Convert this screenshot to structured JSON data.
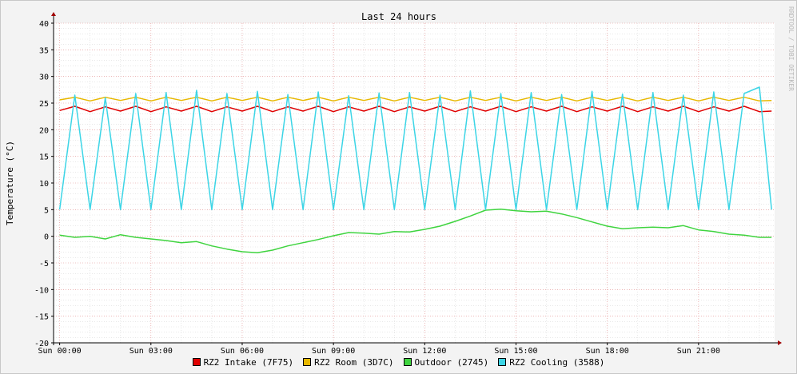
{
  "chart_data": {
    "type": "line",
    "title": "Last 24 hours",
    "ylabel": "Temperature (°C)",
    "xlabel": "",
    "watermark": "RRDTOOL / TOBI OETIKER",
    "ylim": [
      -20,
      40
    ],
    "yticks": [
      40,
      35,
      30,
      25,
      20,
      15,
      10,
      5,
      0,
      -5,
      -10,
      -15,
      -20
    ],
    "yticklabels": [
      "40",
      "35",
      "30",
      "25",
      "20",
      "15",
      "10",
      "5",
      "0",
      "-5",
      "-10",
      "-15",
      "-20"
    ],
    "xlim": [
      -0.2,
      23.5
    ],
    "xticks": [
      0,
      3,
      6,
      9,
      12,
      15,
      18,
      21
    ],
    "xticklabels": [
      "Sun 00:00",
      "Sun 03:00",
      "Sun 06:00",
      "Sun 09:00",
      "Sun 12:00",
      "Sun 15:00",
      "Sun 18:00",
      "Sun 21:00"
    ],
    "grid": true,
    "legend_position": "bottom",
    "series": [
      {
        "name": "RZ2 Intake (7F75)",
        "color": "#e00000",
        "x": [
          0,
          0.5,
          1,
          1.5,
          2,
          2.5,
          3,
          3.5,
          4,
          4.5,
          5,
          5.5,
          6,
          6.5,
          7,
          7.5,
          8,
          8.5,
          9,
          9.5,
          10,
          10.5,
          11,
          11.5,
          12,
          12.5,
          13,
          13.5,
          14,
          14.5,
          15,
          15.5,
          16,
          16.5,
          17,
          17.5,
          18,
          18.5,
          19,
          19.5,
          20,
          20.5,
          21,
          21.5,
          22,
          22.5,
          23,
          23.4
        ],
        "values": [
          23.6,
          24.4,
          23.4,
          24.3,
          23.5,
          24.4,
          23.4,
          24.3,
          23.5,
          24.4,
          23.4,
          24.3,
          23.5,
          24.4,
          23.4,
          24.3,
          23.5,
          24.4,
          23.4,
          24.3,
          23.5,
          24.4,
          23.4,
          24.3,
          23.5,
          24.4,
          23.4,
          24.3,
          23.5,
          24.4,
          23.4,
          24.3,
          23.5,
          24.4,
          23.4,
          24.3,
          23.5,
          24.4,
          23.4,
          24.3,
          23.5,
          24.4,
          23.4,
          24.3,
          23.5,
          24.4,
          23.4,
          23.5
        ]
      },
      {
        "name": "RZ2 Room (3D7C)",
        "color": "#e8b800",
        "x": [
          0,
          0.5,
          1,
          1.5,
          2,
          2.5,
          3,
          3.5,
          4,
          4.5,
          5,
          5.5,
          6,
          6.5,
          7,
          7.5,
          8,
          8.5,
          9,
          9.5,
          10,
          10.5,
          11,
          11.5,
          12,
          12.5,
          13,
          13.5,
          14,
          14.5,
          15,
          15.5,
          16,
          16.5,
          17,
          17.5,
          18,
          18.5,
          19,
          19.5,
          20,
          20.5,
          21,
          21.5,
          22,
          22.5,
          23,
          23.4
        ],
        "values": [
          25.6,
          26.1,
          25.4,
          26.1,
          25.5,
          26.1,
          25.4,
          26.1,
          25.5,
          26.1,
          25.4,
          26.1,
          25.5,
          26.1,
          25.4,
          26.1,
          25.5,
          26.1,
          25.4,
          26.1,
          25.5,
          26.1,
          25.4,
          26.1,
          25.5,
          26.1,
          25.4,
          26.1,
          25.5,
          26.1,
          25.4,
          26.1,
          25.5,
          26.1,
          25.4,
          26.1,
          25.5,
          26.1,
          25.4,
          26.1,
          25.5,
          26.1,
          25.4,
          26.1,
          25.5,
          26.1,
          25.4,
          25.5
        ]
      },
      {
        "name": "Outdoor (2745)",
        "color": "#3fd43f",
        "x": [
          0,
          0.5,
          1,
          1.5,
          2,
          2.5,
          3,
          3.5,
          4,
          4.5,
          5,
          5.5,
          6,
          6.5,
          7,
          7.5,
          8,
          8.5,
          9,
          9.5,
          10,
          10.5,
          11,
          11.5,
          12,
          12.5,
          13,
          13.5,
          14,
          14.5,
          15,
          15.5,
          16,
          16.5,
          17,
          17.5,
          18,
          18.5,
          19,
          19.5,
          20,
          20.5,
          21,
          21.5,
          22,
          22.5,
          23,
          23.4
        ],
        "values": [
          0.2,
          -0.2,
          0.0,
          -0.5,
          0.3,
          -0.2,
          -0.5,
          -0.8,
          -1.2,
          -1.0,
          -1.8,
          -2.4,
          -2.9,
          -3.1,
          -2.6,
          -1.8,
          -1.2,
          -0.6,
          0.1,
          0.7,
          0.6,
          0.4,
          0.9,
          0.8,
          1.3,
          1.9,
          2.8,
          3.8,
          4.9,
          5.1,
          4.8,
          4.6,
          4.7,
          4.2,
          3.5,
          2.7,
          1.9,
          1.4,
          1.6,
          1.7,
          1.6,
          2.0,
          1.2,
          0.9,
          0.4,
          0.2,
          -0.2,
          -0.2
        ]
      },
      {
        "name": "RZ2 Cooling (3588)",
        "color": "#3cd5e6",
        "x": [
          0,
          0.5,
          1,
          1.5,
          2,
          2.5,
          3,
          3.5,
          4,
          4.5,
          5,
          5.5,
          6,
          6.5,
          7,
          7.5,
          8,
          8.5,
          9,
          9.5,
          10,
          10.5,
          11,
          11.5,
          12,
          12.5,
          13,
          13.5,
          14,
          14.5,
          15,
          15.5,
          16,
          16.5,
          17,
          17.5,
          18,
          18.5,
          19,
          19.5,
          20,
          20.5,
          21,
          21.5,
          22,
          22.5,
          23,
          23.4
        ],
        "values": [
          5.0,
          26.5,
          5.0,
          26.0,
          5.0,
          26.8,
          5.0,
          27.0,
          5.0,
          27.4,
          5.0,
          26.8,
          5.0,
          27.2,
          5.0,
          26.6,
          5.0,
          27.1,
          5.0,
          26.4,
          5.0,
          26.9,
          5.0,
          27.0,
          5.0,
          26.5,
          5.0,
          27.3,
          5.0,
          26.8,
          5.0,
          27.0,
          5.0,
          26.6,
          5.0,
          27.2,
          5.0,
          26.7,
          5.0,
          27.0,
          5.0,
          26.5,
          5.0,
          27.1,
          5.0,
          26.8,
          28.0,
          5.0
        ]
      }
    ]
  }
}
